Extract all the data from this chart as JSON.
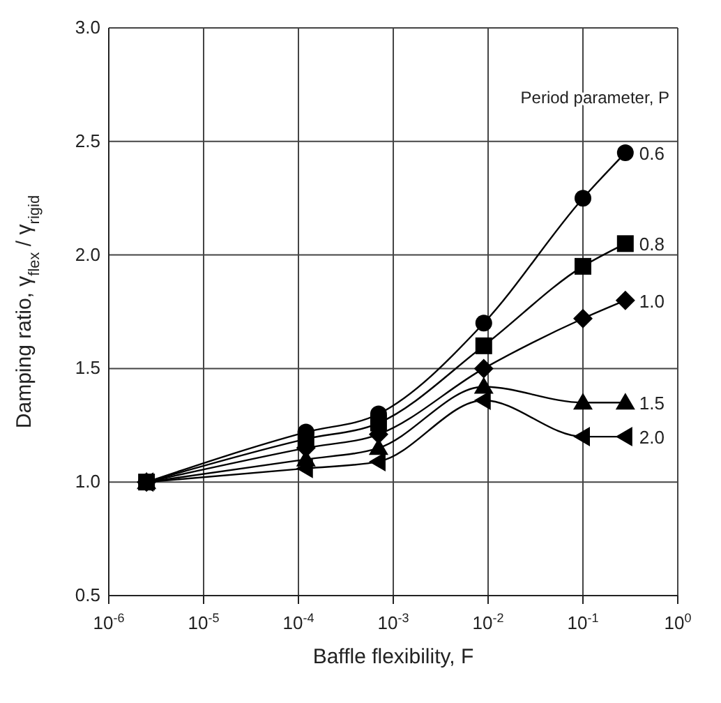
{
  "chart_data": {
    "type": "line",
    "xlabel": "Baffle flexibility, F",
    "ylabel": "Damping ratio, γ$_{flex}$ / γ$_{rigid}$",
    "legend_title": "Period parameter, P",
    "x": [
      2.5e-06,
      0.00012,
      0.0007,
      0.009,
      0.1,
      0.28
    ],
    "series": [
      {
        "name": "0.6",
        "color": "#000000",
        "marker": "circle",
        "values": [
          1.0,
          1.22,
          1.3,
          1.7,
          2.25,
          2.45
        ]
      },
      {
        "name": "0.8",
        "color": "#000000",
        "marker": "square",
        "values": [
          1.0,
          1.19,
          1.26,
          1.6,
          1.95,
          2.05
        ]
      },
      {
        "name": "1.0",
        "color": "#000000",
        "marker": "diamond",
        "values": [
          1.0,
          1.15,
          1.21,
          1.5,
          1.72,
          1.8
        ]
      },
      {
        "name": "1.5",
        "color": "#000000",
        "marker": "triangle",
        "values": [
          1.0,
          1.1,
          1.15,
          1.42,
          1.35,
          1.35
        ]
      },
      {
        "name": "2.0",
        "color": "#000000",
        "marker": "triangle-left",
        "values": [
          1.0,
          1.06,
          1.09,
          1.36,
          1.2,
          1.2
        ]
      }
    ],
    "log": "x",
    "xlim": [
      1e-06,
      1
    ],
    "xticks": [
      {
        "value": 1e-06,
        "label": "10$^{-6}$"
      },
      {
        "value": 1e-05,
        "label": "10$^{-5}$"
      },
      {
        "value": 0.0001,
        "label": "10$^{-4}$"
      },
      {
        "value": 0.001,
        "label": "10$^{-3}$"
      },
      {
        "value": 0.01,
        "label": "10$^{-2}$"
      },
      {
        "value": 0.1,
        "label": "10$^{-1}$"
      },
      {
        "value": 1,
        "label": "10$^{0}$"
      }
    ],
    "ylim": [
      0.5,
      3.0
    ],
    "yticks": [
      {
        "value": 0.5,
        "label": "0.5"
      },
      {
        "value": 1.0,
        "label": "1.0"
      },
      {
        "value": 1.5,
        "label": "1.5"
      },
      {
        "value": 2.0,
        "label": "2.0"
      },
      {
        "value": 2.5,
        "label": "2.5"
      },
      {
        "value": 3.0,
        "label": "3.0"
      }
    ],
    "grid": true,
    "line_style": "solid"
  }
}
